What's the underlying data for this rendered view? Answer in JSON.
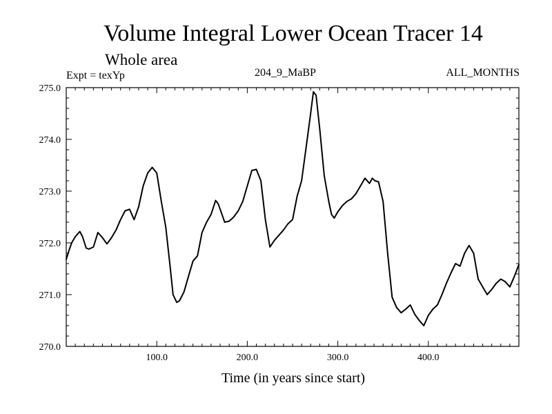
{
  "chart_data": {
    "type": "line",
    "title": "Volume Integral Lower Ocean Tracer 14",
    "subtitle": "Whole area",
    "annotations": {
      "left": "Expt = texYp",
      "center": "204_9_MaBP",
      "right": "ALL_MONTHS"
    },
    "xlabel": "Time (in years since start)",
    "ylabel": "",
    "xlim": [
      0,
      500
    ],
    "ylim": [
      270.0,
      275.0
    ],
    "xticks": [
      100,
      200,
      300,
      400
    ],
    "xtick_labels": [
      "100.0",
      "200.0",
      "300.0",
      "400.0"
    ],
    "yticks": [
      270,
      271,
      272,
      273,
      274,
      275
    ],
    "ytick_labels": [
      "270.0",
      "271.0",
      "272.0",
      "273.0",
      "274.0",
      "275.0"
    ],
    "grid": false,
    "series": [
      {
        "name": "Tracer 14",
        "x": [
          0,
          3,
          6,
          10,
          15,
          18,
          22,
          25,
          30,
          35,
          40,
          45,
          50,
          55,
          60,
          65,
          70,
          75,
          80,
          85,
          90,
          95,
          100,
          105,
          110,
          115,
          118,
          122,
          125,
          130,
          135,
          140,
          145,
          150,
          155,
          160,
          165,
          168,
          172,
          175,
          180,
          185,
          190,
          195,
          200,
          205,
          210,
          215,
          220,
          225,
          230,
          235,
          240,
          245,
          250,
          255,
          260,
          265,
          270,
          273,
          276,
          280,
          285,
          290,
          293,
          296,
          300,
          305,
          310,
          315,
          320,
          325,
          330,
          335,
          338,
          341,
          345,
          350,
          355,
          360,
          365,
          370,
          375,
          380,
          385,
          390,
          395,
          400,
          405,
          410,
          415,
          420,
          425,
          430,
          435,
          440,
          445,
          450,
          455,
          460,
          465,
          470,
          475,
          480,
          485,
          490,
          495,
          500
        ],
        "values": [
          271.68,
          271.85,
          272.0,
          272.12,
          272.22,
          272.12,
          271.9,
          271.88,
          271.92,
          272.2,
          272.1,
          271.98,
          272.1,
          272.25,
          272.45,
          272.62,
          272.65,
          272.45,
          272.7,
          273.1,
          273.35,
          273.46,
          273.35,
          272.8,
          272.3,
          271.5,
          271.0,
          270.85,
          270.88,
          271.05,
          271.35,
          271.65,
          271.75,
          272.2,
          272.4,
          272.55,
          272.82,
          272.75,
          272.55,
          272.4,
          272.42,
          272.5,
          272.62,
          272.8,
          273.1,
          273.4,
          273.42,
          273.2,
          272.45,
          271.92,
          272.05,
          272.15,
          272.25,
          272.37,
          272.45,
          272.9,
          273.2,
          273.85,
          274.5,
          274.92,
          274.85,
          274.2,
          273.3,
          272.8,
          272.55,
          272.48,
          272.6,
          272.72,
          272.8,
          272.85,
          272.95,
          273.1,
          273.25,
          273.15,
          273.25,
          273.2,
          273.18,
          272.8,
          271.8,
          270.95,
          270.75,
          270.65,
          270.72,
          270.8,
          270.62,
          270.5,
          270.4,
          270.6,
          270.72,
          270.8,
          271.0,
          271.22,
          271.42,
          271.6,
          271.55,
          271.8,
          271.95,
          271.8,
          271.3,
          271.15,
          271.0,
          271.1,
          271.22,
          271.3,
          271.25,
          271.15,
          271.35,
          271.58
        ]
      }
    ]
  }
}
